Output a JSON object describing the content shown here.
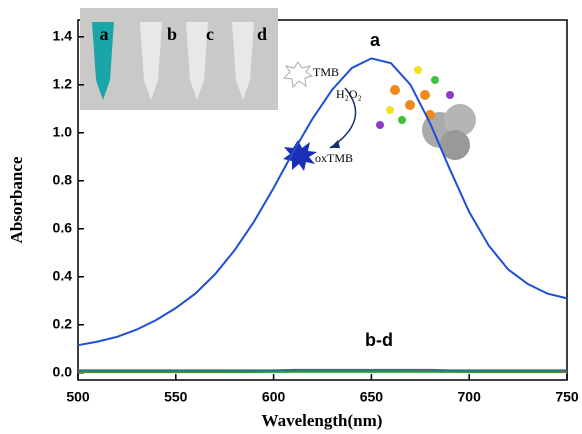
{
  "chart_data": {
    "type": "line",
    "xlabel": "Wavelength(nm)",
    "ylabel": "Absorbance",
    "x": [
      500,
      510,
      520,
      530,
      540,
      550,
      560,
      570,
      580,
      590,
      600,
      610,
      620,
      630,
      640,
      650,
      660,
      670,
      680,
      690,
      700,
      710,
      720,
      730,
      740,
      750
    ],
    "series": [
      {
        "name": "a",
        "color": "#1f4fd6",
        "values": [
          0.115,
          0.13,
          0.15,
          0.18,
          0.22,
          0.27,
          0.33,
          0.41,
          0.51,
          0.63,
          0.77,
          0.92,
          1.06,
          1.18,
          1.27,
          1.31,
          1.29,
          1.2,
          1.04,
          0.85,
          0.67,
          0.53,
          0.43,
          0.37,
          0.33,
          0.31
        ]
      },
      {
        "name": "b",
        "color": "#1a7a8a",
        "values": [
          0.01,
          0.01,
          0.01,
          0.01,
          0.01,
          0.01,
          0.01,
          0.01,
          0.01,
          0.01,
          0.01,
          0.012,
          0.012,
          0.012,
          0.012,
          0.012,
          0.012,
          0.012,
          0.012,
          0.01,
          0.01,
          0.01,
          0.01,
          0.01,
          0.01,
          0.01
        ]
      },
      {
        "name": "c",
        "color": "#d9452b",
        "values": [
          0.006,
          0.006,
          0.006,
          0.006,
          0.006,
          0.006,
          0.006,
          0.006,
          0.007,
          0.007,
          0.008,
          0.008,
          0.009,
          0.009,
          0.009,
          0.009,
          0.009,
          0.008,
          0.008,
          0.007,
          0.007,
          0.006,
          0.006,
          0.006,
          0.006,
          0.006
        ]
      },
      {
        "name": "d",
        "color": "#2f9e3f",
        "values": [
          0.003,
          0.003,
          0.003,
          0.003,
          0.003,
          0.003,
          0.003,
          0.003,
          0.003,
          0.003,
          0.004,
          0.004,
          0.004,
          0.004,
          0.004,
          0.004,
          0.004,
          0.004,
          0.004,
          0.004,
          0.003,
          0.003,
          0.003,
          0.003,
          0.003,
          0.003
        ]
      }
    ],
    "xlim": [
      500,
      750
    ],
    "xticks": [
      500,
      550,
      600,
      650,
      700,
      750
    ],
    "ylim": [
      -0.03,
      1.47
    ],
    "yticks": [
      {
        "value": 0,
        "label": "0.0"
      },
      0.2,
      0.4,
      0.6,
      0.8,
      {
        "value": 1,
        "label": "1.0"
      },
      1.2,
      1.4
    ],
    "curve_labels": [
      "a",
      "b-d"
    ],
    "inset_labels": [
      "a",
      "b",
      "c",
      "d"
    ],
    "scheme_labels": [
      "TMB",
      "H₂O₂",
      "oxTMB"
    ]
  }
}
